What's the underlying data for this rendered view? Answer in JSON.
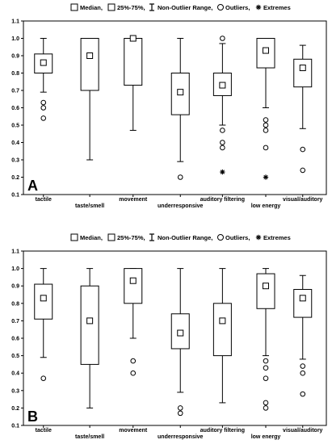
{
  "legend": {
    "median": "Median,",
    "iqr": "25%-75%,",
    "range": "Non-Outlier Range,",
    "outliers": "Outliers,",
    "extremes": "Extremes"
  },
  "chart_data": [
    {
      "type": "box",
      "panel_label": "A",
      "categories": [
        "tactile",
        "taste/smell",
        "movement",
        "underresponsive",
        "auditory filtering",
        "low energy",
        "visual/auditory"
      ],
      "ylim": [
        0.1,
        1.1
      ],
      "yticks": [
        "0.1",
        "0.2",
        "0.3",
        "0.4",
        "0.5",
        "0.6",
        "0.7",
        "0.8",
        "0.9",
        "1.0",
        "1.1"
      ],
      "grid": false,
      "legend_position": "top",
      "boxes": [
        {
          "median": 0.86,
          "q1": 0.8,
          "q3": 0.91,
          "whisker_low": 0.69,
          "whisker_high": 1.0,
          "outliers": [
            0.63,
            0.6,
            0.54
          ],
          "extremes": []
        },
        {
          "median": 0.9,
          "q1": 0.7,
          "q3": 1.0,
          "whisker_low": 0.3,
          "whisker_high": 1.0,
          "outliers": [],
          "extremes": []
        },
        {
          "median": 1.0,
          "q1": 0.73,
          "q3": 1.0,
          "whisker_low": 0.47,
          "whisker_high": 1.0,
          "outliers": [],
          "extremes": []
        },
        {
          "median": 0.69,
          "q1": 0.56,
          "q3": 0.8,
          "whisker_low": 0.29,
          "whisker_high": 1.0,
          "outliers": [
            0.2
          ],
          "extremes": []
        },
        {
          "median": 0.73,
          "q1": 0.67,
          "q3": 0.8,
          "whisker_low": 0.5,
          "whisker_high": 0.97,
          "outliers": [
            1.0,
            0.47,
            0.4,
            0.37
          ],
          "extremes": [
            0.23
          ]
        },
        {
          "median": 0.93,
          "q1": 0.83,
          "q3": 1.0,
          "whisker_low": 0.6,
          "whisker_high": 1.0,
          "outliers": [
            0.53,
            0.5,
            0.47,
            0.37
          ],
          "extremes": [
            0.2
          ]
        },
        {
          "median": 0.83,
          "q1": 0.72,
          "q3": 0.88,
          "whisker_low": 0.48,
          "whisker_high": 0.96,
          "outliers": [
            0.36,
            0.24
          ],
          "extremes": []
        }
      ]
    },
    {
      "type": "box",
      "panel_label": "B",
      "categories": [
        "tactile",
        "taste/smell",
        "movement",
        "underresponsive",
        "auditory filtering",
        "low energy",
        "visual/auditory"
      ],
      "ylim": [
        0.1,
        1.1
      ],
      "yticks": [
        "0.1",
        "0.2",
        "0.3",
        "0.4",
        "0.5",
        "0.6",
        "0.7",
        "0.8",
        "0.9",
        "1.0",
        "1.1"
      ],
      "grid": false,
      "legend_position": "top",
      "boxes": [
        {
          "median": 0.83,
          "q1": 0.71,
          "q3": 0.91,
          "whisker_low": 0.49,
          "whisker_high": 1.0,
          "outliers": [
            0.37
          ],
          "extremes": []
        },
        {
          "median": 0.7,
          "q1": 0.45,
          "q3": 0.9,
          "whisker_low": 0.2,
          "whisker_high": 1.0,
          "outliers": [],
          "extremes": []
        },
        {
          "median": 0.93,
          "q1": 0.8,
          "q3": 1.0,
          "whisker_low": 0.6,
          "whisker_high": 1.0,
          "outliers": [
            0.47,
            0.4
          ],
          "extremes": []
        },
        {
          "median": 0.63,
          "q1": 0.54,
          "q3": 0.74,
          "whisker_low": 0.29,
          "whisker_high": 1.0,
          "outliers": [
            0.2,
            0.17
          ],
          "extremes": []
        },
        {
          "median": 0.7,
          "q1": 0.5,
          "q3": 0.8,
          "whisker_low": 0.23,
          "whisker_high": 1.0,
          "outliers": [],
          "extremes": []
        },
        {
          "median": 0.9,
          "q1": 0.77,
          "q3": 0.97,
          "whisker_low": 0.5,
          "whisker_high": 1.0,
          "outliers": [
            0.47,
            0.43,
            0.37,
            0.23,
            0.2
          ],
          "extremes": []
        },
        {
          "median": 0.83,
          "q1": 0.72,
          "q3": 0.88,
          "whisker_low": 0.48,
          "whisker_high": 0.96,
          "outliers": [
            0.44,
            0.4,
            0.28
          ],
          "extremes": []
        }
      ]
    }
  ]
}
